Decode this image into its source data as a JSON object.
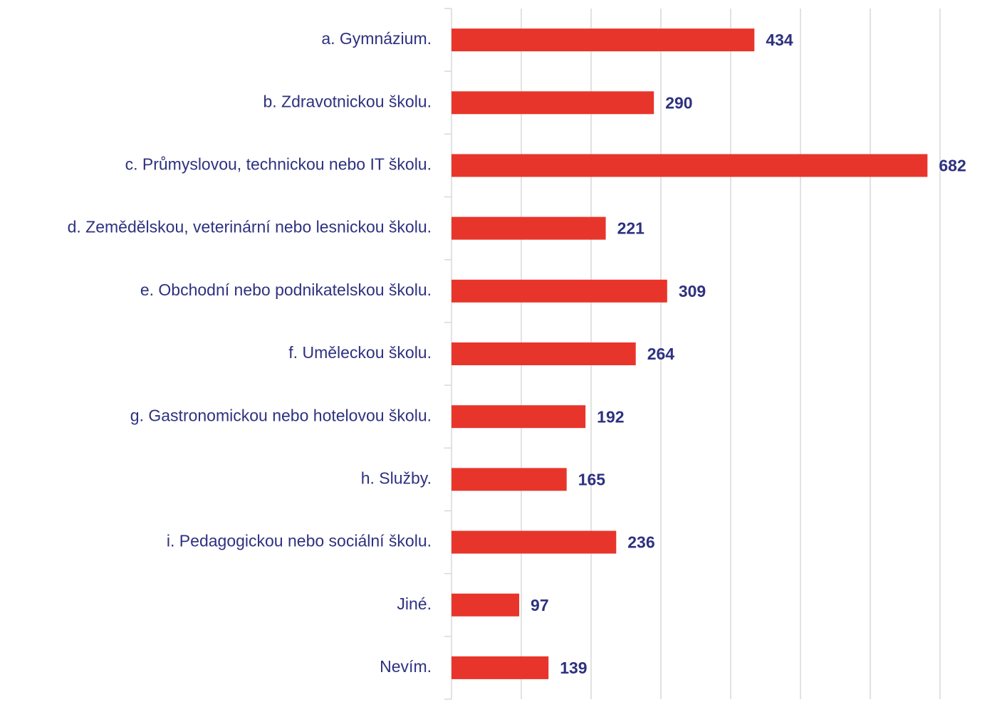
{
  "chart_data": {
    "type": "bar",
    "orientation": "horizontal",
    "categories": [
      "a. Gymnázium.",
      "b. Zdravotnickou školu.",
      "c. Průmyslovou, technickou nebo IT školu.",
      "d. Zemědělskou, veterinární nebo lesnickou školu.",
      "e. Obchodní nebo podnikatelskou školu.",
      "f. Uměleckou školu.",
      "g. Gastronomickou nebo hotelovou školu.",
      "h. Služby.",
      "i. Pedagogickou nebo sociální školu.",
      "Jiné.",
      "Nevím."
    ],
    "values": [
      434,
      290,
      682,
      221,
      309,
      264,
      192,
      165,
      236,
      97,
      139
    ],
    "color": "#e8352b",
    "xlim": [
      0,
      700
    ],
    "xticks": [
      0,
      100,
      200,
      300,
      400,
      500,
      600,
      700
    ],
    "grid": true
  }
}
